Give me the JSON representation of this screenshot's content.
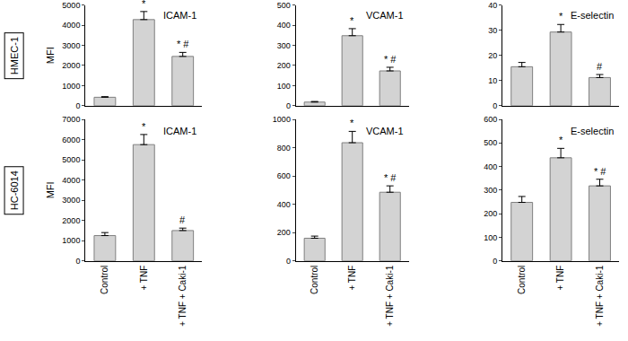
{
  "chart_data": [
    {
      "type": "bar",
      "title": "ICAM-1",
      "row_label": "HMEC-1",
      "y_label": "MFI",
      "categories": [
        "Control",
        "+ TNF",
        "+ TNF + Caki-1"
      ],
      "values": [
        420,
        4280,
        2450
      ],
      "errors": [
        30,
        400,
        200
      ],
      "bar_notes": [
        null,
        "*",
        "* #"
      ],
      "ylim": [
        0,
        5000
      ],
      "yticks": [
        0,
        1000,
        2000,
        3000,
        4000,
        5000
      ],
      "color": "#d3d3d3",
      "grid": false,
      "tick_labels": "y"
    },
    {
      "type": "bar",
      "title": "VCAM-1",
      "row_label": "HMEC-1",
      "categories": [
        "Control",
        "+ TNF",
        "+ TNF + Caki-1"
      ],
      "values": [
        18,
        348,
        173
      ],
      "errors": [
        3,
        35,
        18
      ],
      "bar_notes": [
        null,
        "*",
        "* #"
      ],
      "ylim": [
        0,
        500
      ],
      "yticks": [
        0,
        100,
        200,
        300,
        400,
        500
      ],
      "color": "#d3d3d3",
      "grid": false,
      "tick_labels": "y"
    },
    {
      "type": "bar",
      "title": "E-selectin",
      "row_label": "HMEC-1",
      "categories": [
        "Control",
        "+ TNF",
        "+ TNF + Caki-1"
      ],
      "values": [
        15.5,
        29.3,
        11.2
      ],
      "errors": [
        1.7,
        3,
        1.2
      ],
      "bar_notes": [
        null,
        "*",
        "#"
      ],
      "ylim": [
        0,
        40
      ],
      "yticks": [
        0,
        10,
        20,
        30,
        40
      ],
      "color": "#d3d3d3",
      "grid": false,
      "tick_labels": "y"
    },
    {
      "type": "bar",
      "title": "ICAM-1",
      "row_label": "HC-6014",
      "y_label": "MFI",
      "categories": [
        "Control",
        "+ TNF",
        "+ TNF + Caki-1"
      ],
      "values": [
        1250,
        5750,
        1500
      ],
      "errors": [
        150,
        500,
        120
      ],
      "bar_notes": [
        null,
        "*",
        "#"
      ],
      "ylim": [
        0,
        7000
      ],
      "yticks": [
        0,
        1000,
        2000,
        3000,
        4000,
        5000,
        6000,
        7000
      ],
      "color": "#d3d3d3",
      "grid": false,
      "tick_labels": true
    },
    {
      "type": "bar",
      "title": "VCAM-1",
      "row_label": "HC-6014",
      "categories": [
        "Control",
        "+ TNF",
        "+ TNF + Caki-1"
      ],
      "values": [
        160,
        835,
        485
      ],
      "errors": [
        15,
        80,
        45
      ],
      "bar_notes": [
        null,
        "*",
        "* #"
      ],
      "ylim": [
        0,
        1000
      ],
      "yticks": [
        0,
        200,
        400,
        600,
        800,
        1000
      ],
      "color": "#d3d3d3",
      "grid": false,
      "tick_labels": true
    },
    {
      "type": "bar",
      "title": "E-selectin",
      "row_label": "HC-6014",
      "categories": [
        "Control",
        "+ TNF",
        "+ TNF + Caki-1"
      ],
      "values": [
        248,
        437,
        318
      ],
      "errors": [
        25,
        40,
        28
      ],
      "bar_notes": [
        null,
        "*",
        "* #"
      ],
      "ylim": [
        0,
        600
      ],
      "yticks": [
        0,
        100,
        200,
        300,
        400,
        500,
        600
      ],
      "color": "#d3d3d3",
      "grid": false,
      "tick_labels": true
    }
  ]
}
